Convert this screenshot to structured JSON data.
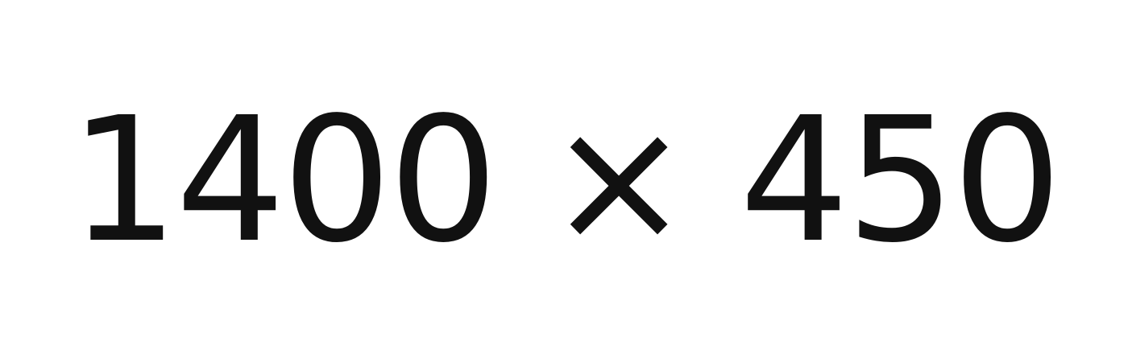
{
  "label": "1400 × 450",
  "text_color": "#111111",
  "background_color": "#ffffff"
}
